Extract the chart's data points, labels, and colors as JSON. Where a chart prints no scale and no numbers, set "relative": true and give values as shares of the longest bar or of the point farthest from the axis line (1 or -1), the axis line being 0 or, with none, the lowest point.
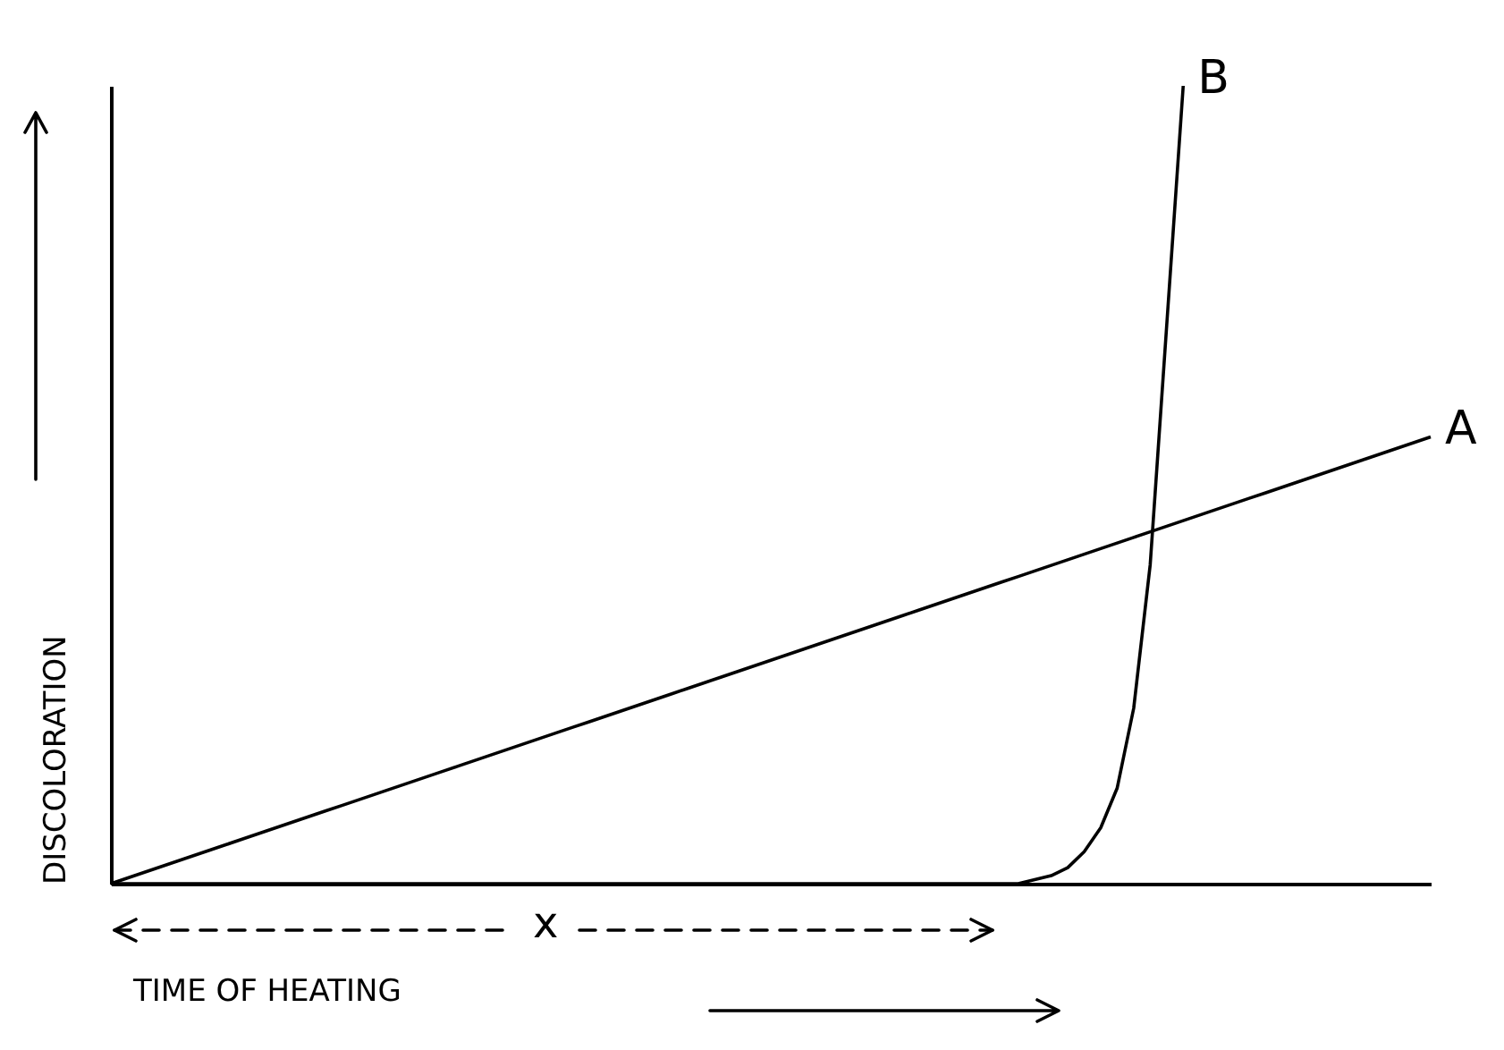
{
  "chart_data": {
    "type": "line",
    "relative": true,
    "xlabel": "TIME OF HEATING",
    "ylabel": "DISCOLORATION",
    "annotations": [
      "x"
    ],
    "legend": false,
    "grid": false,
    "categories": [
      null,
      null,
      null,
      null,
      null,
      null,
      null,
      null,
      null,
      null,
      null,
      null,
      null,
      null,
      null,
      null,
      null,
      null,
      null,
      null,
      null,
      null,
      null,
      null,
      null,
      null,
      null,
      null,
      null,
      null,
      null,
      null,
      null,
      null,
      null,
      null,
      null,
      null,
      null,
      null,
      null,
      null,
      null,
      null,
      null,
      null,
      null,
      null,
      null,
      null,
      null,
      null,
      null,
      null,
      null,
      null,
      null,
      null,
      null,
      null,
      null,
      null,
      null,
      null,
      null,
      null,
      null,
      null,
      null,
      null,
      null,
      null,
      null,
      null,
      null,
      null,
      null,
      null,
      null,
      null,
      null
    ],
    "series": [
      {
        "name": "A",
        "color": "#000000",
        "values": [
          0,
          0.007,
          0.014,
          0.021,
          0.028,
          0.035,
          0.042,
          0.049,
          0.056,
          0.063,
          0.07,
          0.077,
          0.084,
          0.091,
          0.098,
          0.105,
          0.112,
          0.119,
          0.126,
          0.133,
          0.14,
          0.147,
          0.154,
          0.161,
          0.168,
          0.175,
          0.182,
          0.189,
          0.196,
          0.203,
          0.21,
          0.217,
          0.224,
          0.231,
          0.238,
          0.245,
          0.252,
          0.259,
          0.266,
          0.273,
          0.28,
          0.287,
          0.294,
          0.301,
          0.308,
          0.315,
          0.322,
          0.329,
          0.336,
          0.343,
          0.35,
          0.357,
          0.364,
          0.371,
          0.378,
          0.385,
          0.392,
          0.399,
          0.406,
          0.413,
          0.42,
          0.427,
          0.434,
          0.441,
          0.448,
          0.455,
          0.462,
          0.469,
          0.476,
          0.483,
          0.49,
          0.497,
          0.504,
          0.511,
          0.518,
          0.525,
          0.532,
          0.539,
          0.546,
          0.553,
          0.56
        ]
      },
      {
        "name": "B",
        "color": "#000000",
        "values": [
          0,
          0,
          0,
          0,
          0,
          0,
          0,
          0,
          0,
          0,
          0,
          0,
          0,
          0,
          0,
          0,
          0,
          0,
          0,
          0,
          0,
          0,
          0,
          0,
          0,
          0,
          0,
          0,
          0,
          0,
          0,
          0,
          0,
          0,
          0,
          0,
          0,
          0,
          0,
          0,
          0,
          0,
          0,
          0,
          0,
          0,
          0,
          0,
          0,
          0,
          0,
          0,
          0,
          0,
          0,
          0,
          0.005,
          0.01,
          0.02,
          0.04,
          0.07,
          0.12,
          0.22,
          0.4,
          0.7,
          1,
          null,
          null,
          null,
          null,
          null,
          null,
          null,
          null,
          null,
          null,
          null,
          null,
          null,
          null,
          null
        ]
      }
    ]
  }
}
